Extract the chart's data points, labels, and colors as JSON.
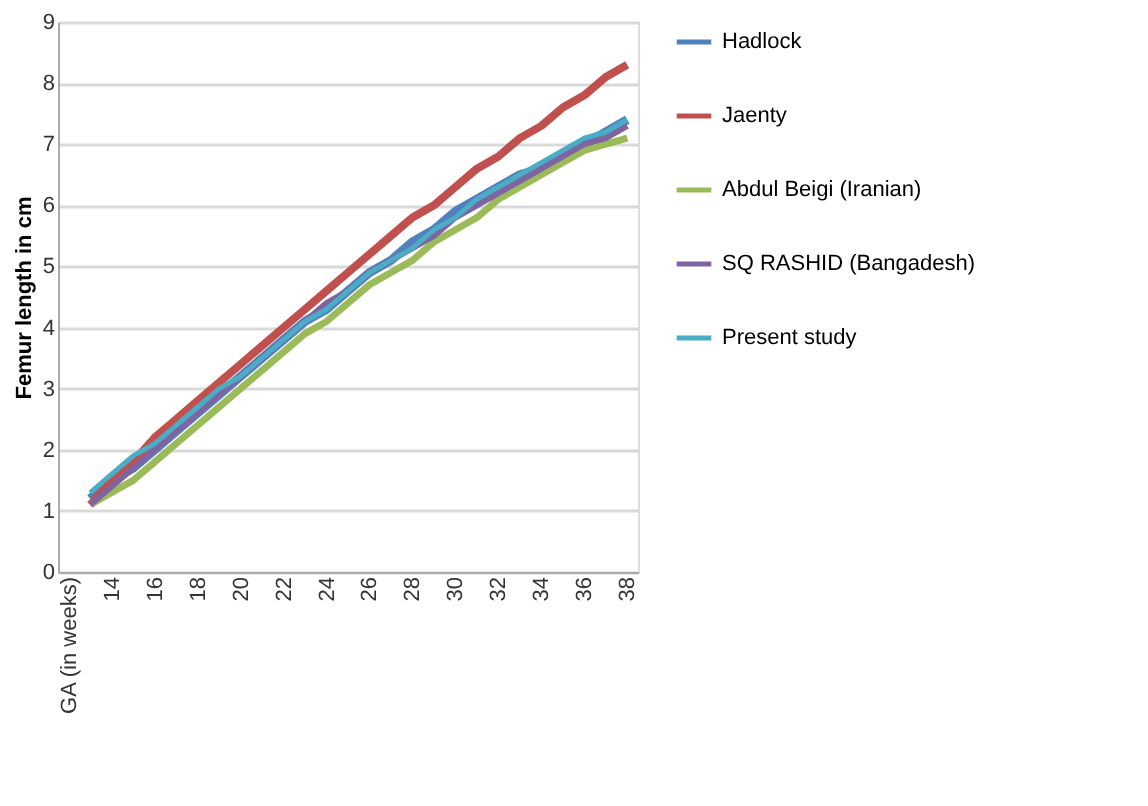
{
  "chart_data": {
    "type": "line",
    "ylabel": "Femur length in cm",
    "categories": [
      "GA (in weeks)",
      null,
      "14",
      null,
      "16",
      null,
      "18",
      null,
      "20",
      null,
      "22",
      null,
      "24",
      null,
      "26",
      null,
      "28",
      null,
      "30",
      null,
      "32",
      null,
      "34",
      null,
      "36",
      null,
      "38"
    ],
    "ylim": [
      0,
      9
    ],
    "yticks": [
      0,
      1,
      2,
      3,
      4,
      5,
      6,
      7,
      8,
      9
    ],
    "grid": "y",
    "legend": "right",
    "marker": "none",
    "line_style": "solid",
    "series": [
      {
        "name": "Hadlock",
        "color": "#4f81bd",
        "values": [
          null,
          1.2,
          1.5,
          1.7,
          2.0,
          2.3,
          2.6,
          2.9,
          3.2,
          3.5,
          3.8,
          4.1,
          4.3,
          4.6,
          4.9,
          5.1,
          5.4,
          5.6,
          5.9,
          6.1,
          6.3,
          6.5,
          6.6,
          6.8,
          7.0,
          7.2,
          7.4
        ]
      },
      {
        "name": "Jaenty",
        "color": "#c0504d",
        "values": [
          null,
          1.1,
          1.5,
          1.8,
          2.2,
          2.5,
          2.8,
          3.1,
          3.4,
          3.7,
          4.0,
          4.3,
          4.6,
          4.9,
          5.2,
          5.5,
          5.8,
          6.0,
          6.3,
          6.6,
          6.8,
          7.1,
          7.3,
          7.6,
          7.8,
          8.1,
          8.3
        ]
      },
      {
        "name": "Abdul Beigi  (Iranian)",
        "color": "#9bbb59",
        "values": [
          null,
          1.1,
          1.3,
          1.5,
          1.8,
          2.1,
          2.4,
          2.7,
          3.0,
          3.3,
          3.6,
          3.9,
          4.1,
          4.4,
          4.7,
          4.9,
          5.1,
          5.4,
          5.6,
          5.8,
          6.1,
          6.3,
          6.5,
          6.7,
          6.9,
          7.0,
          7.1
        ]
      },
      {
        "name": "SQ RASHID (Bangadesh)",
        "color": "#8064a2",
        "values": [
          null,
          1.1,
          1.4,
          1.7,
          2.0,
          2.3,
          2.6,
          2.9,
          3.2,
          3.5,
          3.8,
          4.1,
          4.4,
          4.6,
          4.9,
          5.1,
          5.3,
          5.5,
          5.8,
          6.0,
          6.2,
          6.4,
          6.6,
          6.8,
          7.0,
          7.1,
          7.3
        ]
      },
      {
        "name": "Present study",
        "color": "#4bacc6",
        "values": [
          null,
          1.3,
          1.6,
          1.9,
          2.1,
          2.4,
          2.7,
          3.0,
          3.2,
          3.5,
          3.8,
          4.1,
          4.3,
          4.6,
          4.9,
          5.1,
          5.3,
          5.6,
          5.8,
          6.1,
          6.3,
          6.5,
          6.7,
          6.9,
          7.1,
          7.2,
          7.4
        ]
      }
    ]
  }
}
